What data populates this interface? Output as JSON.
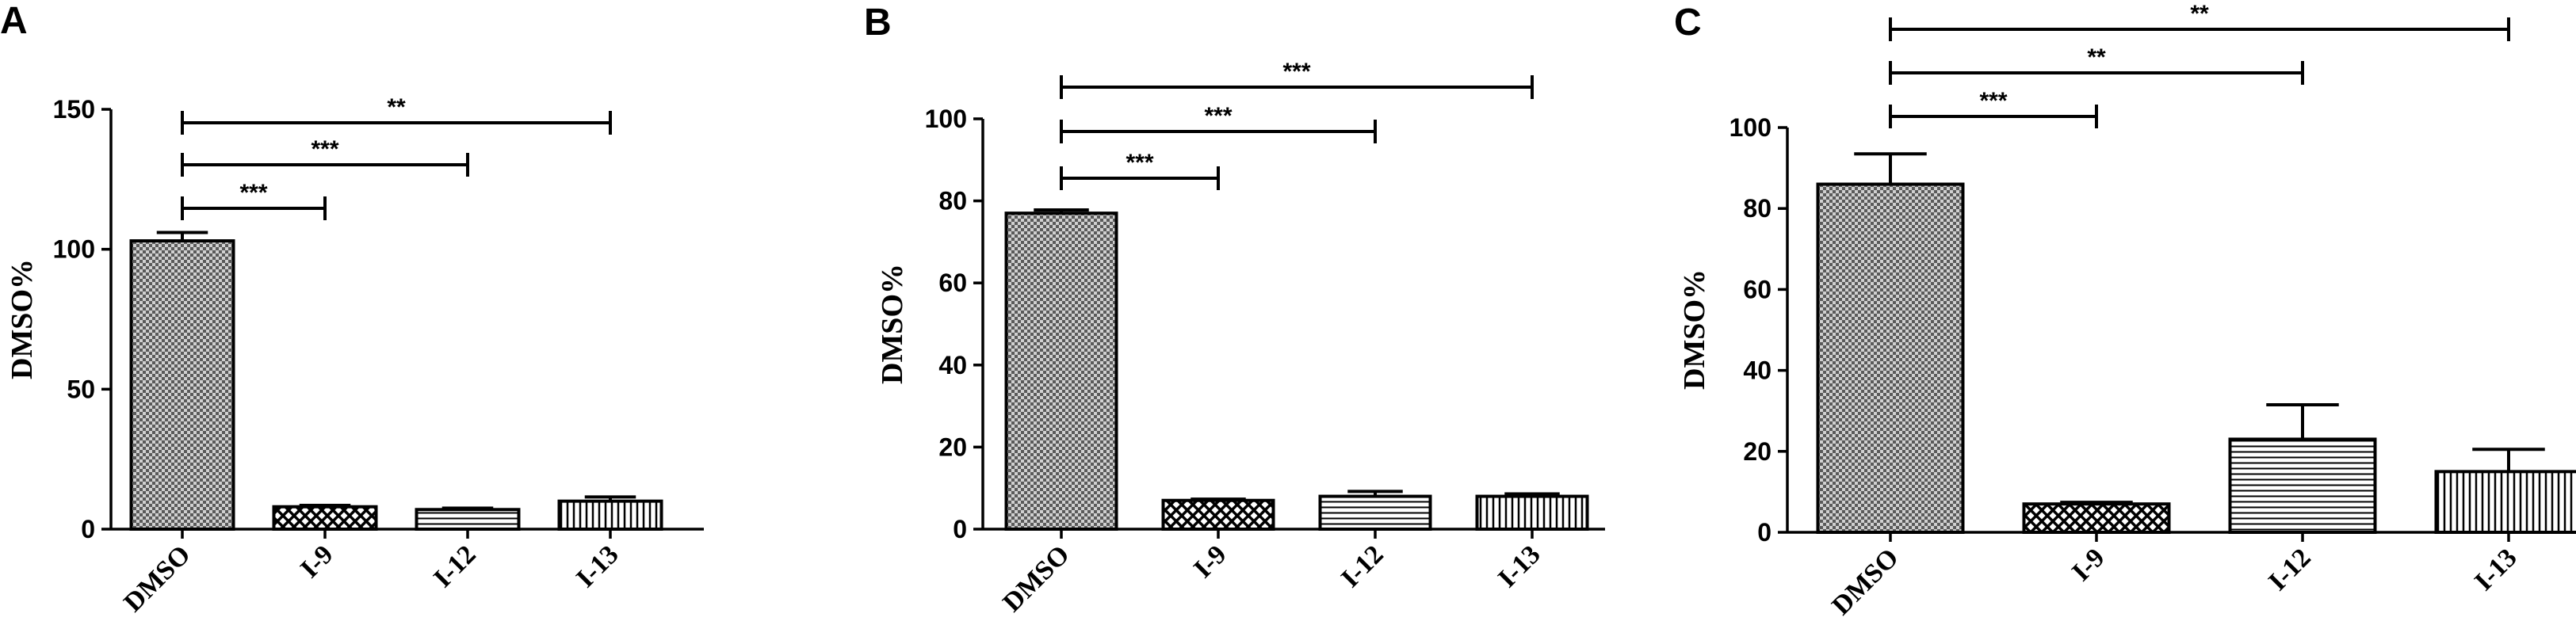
{
  "chart_data": [
    {
      "panel": "A",
      "type": "bar",
      "categories": [
        "DMSO",
        "I-9",
        "I-12",
        "I-13"
      ],
      "values": [
        103,
        8,
        7,
        10
      ],
      "errors": [
        3,
        0.5,
        0.5,
        1.5
      ],
      "patterns": [
        "checker",
        "lattice",
        "hlines",
        "vlines"
      ],
      "ylabel": "DMSO%",
      "ylim": [
        0,
        150
      ],
      "yticks": [
        0,
        50,
        100,
        150
      ],
      "ytick_labels": [
        "0",
        "50",
        "100",
        "150"
      ],
      "comparisons": [
        {
          "from": "DMSO",
          "to": "I-9",
          "label": "***"
        },
        {
          "from": "DMSO",
          "to": "I-12",
          "label": "***"
        },
        {
          "from": "DMSO",
          "to": "I-13",
          "label": "**"
        }
      ]
    },
    {
      "panel": "B",
      "type": "bar",
      "categories": [
        "DMSO",
        "I-9",
        "I-12",
        "I-13"
      ],
      "values": [
        77,
        7,
        8,
        8
      ],
      "errors": [
        0.8,
        0.3,
        1.2,
        0.6
      ],
      "patterns": [
        "checker",
        "lattice",
        "hlines",
        "vlines"
      ],
      "ylabel": "DMSO%",
      "ylim": [
        0,
        100
      ],
      "yticks": [
        0,
        20,
        40,
        60,
        80,
        100
      ],
      "ytick_labels": [
        "0",
        "20",
        "40",
        "60",
        "80",
        "100"
      ],
      "comparisons": [
        {
          "from": "DMSO",
          "to": "I-9",
          "label": "***"
        },
        {
          "from": "DMSO",
          "to": "I-12",
          "label": "***"
        },
        {
          "from": "DMSO",
          "to": "I-13",
          "label": "***"
        }
      ]
    },
    {
      "panel": "C",
      "type": "bar",
      "categories": [
        "DMSO",
        "I-9",
        "I-12",
        "I-13"
      ],
      "values": [
        86,
        7,
        23,
        15
      ],
      "errors": [
        7.5,
        0.4,
        8.5,
        5.5
      ],
      "patterns": [
        "checker",
        "lattice",
        "hlines",
        "vlines"
      ],
      "ylabel": "DMSO%",
      "ylim": [
        0,
        100
      ],
      "yticks": [
        0,
        20,
        40,
        60,
        80,
        100
      ],
      "ytick_labels": [
        "0",
        "20",
        "40",
        "60",
        "80",
        "100"
      ],
      "comparisons": [
        {
          "from": "DMSO",
          "to": "I-9",
          "label": "***"
        },
        {
          "from": "DMSO",
          "to": "I-12",
          "label": "**"
        },
        {
          "from": "DMSO",
          "to": "I-13",
          "label": "**"
        }
      ]
    }
  ]
}
